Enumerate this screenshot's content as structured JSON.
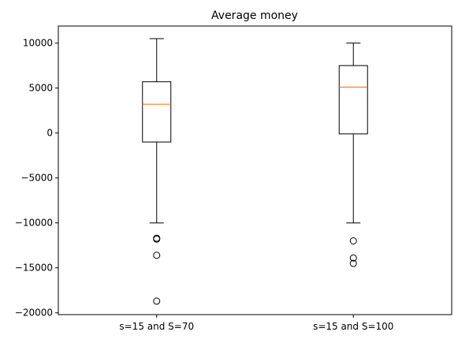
{
  "chart_data": {
    "type": "box",
    "title": "Average money",
    "xlabel": "",
    "ylabel": "",
    "ylim": [
      -20200,
      11900
    ],
    "yticks": [
      10000,
      5000,
      0,
      -5000,
      -10000,
      -15000,
      -20000
    ],
    "ytick_labels": [
      "10000",
      "5000",
      "0",
      "−5000",
      "−10000",
      "−15000",
      "−20000"
    ],
    "categories": [
      "s=15 and S=70",
      "s=15 and S=100"
    ],
    "boxes": [
      {
        "label": "s=15 and S=70",
        "whisker_low": -10000,
        "q1": -1000,
        "median": 3200,
        "q3": 5700,
        "whisker_high": 10500,
        "outliers": [
          -11700,
          -11800,
          -13600,
          -18700
        ]
      },
      {
        "label": "s=15 and S=100",
        "whisker_low": -10000,
        "q1": -100,
        "median": 5100,
        "q3": 7500,
        "whisker_high": 10000,
        "outliers": [
          -12000,
          -13900,
          -14500
        ]
      }
    ],
    "grid": false,
    "legend": "none",
    "colors": {
      "box": "#000000",
      "median": "#ff7f0e",
      "outlier": "#000000"
    }
  }
}
